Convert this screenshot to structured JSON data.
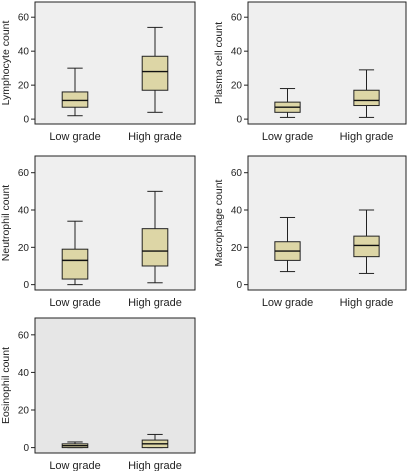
{
  "chart_data": [
    {
      "type": "box",
      "ylabel": "Lymphocyte count",
      "ylim": [
        0,
        65
      ],
      "yticks": [
        "0",
        "20",
        "40",
        "60"
      ],
      "categories": [
        "Low grade",
        "High grade"
      ],
      "boxes": [
        {
          "whisker_low": 2,
          "q1": 7,
          "median": 11,
          "q3": 16,
          "whisker_high": 30
        },
        {
          "whisker_low": 4,
          "q1": 17,
          "median": 28,
          "q3": 37,
          "whisker_high": 54
        }
      ],
      "plot_bg": "#efefef",
      "box_fill": "#ddd6a6"
    },
    {
      "type": "box",
      "ylabel": "Plasma cell count",
      "ylim": [
        0,
        65
      ],
      "yticks": [
        "0",
        "20",
        "40",
        "60"
      ],
      "categories": [
        "Low grade",
        "High grade"
      ],
      "boxes": [
        {
          "whisker_low": 1,
          "q1": 4,
          "median": 7,
          "q3": 10,
          "whisker_high": 18
        },
        {
          "whisker_low": 1,
          "q1": 8,
          "median": 11,
          "q3": 17,
          "whisker_high": 29
        }
      ],
      "plot_bg": "#efefef",
      "box_fill": "#ddd6a6"
    },
    {
      "type": "box",
      "ylabel": "Neutrophil count",
      "ylim": [
        0,
        65
      ],
      "yticks": [
        "0",
        "20",
        "40",
        "60"
      ],
      "categories": [
        "Low grade",
        "High grade"
      ],
      "boxes": [
        {
          "whisker_low": 0,
          "q1": 3,
          "median": 13,
          "q3": 19,
          "whisker_high": 34
        },
        {
          "whisker_low": 1,
          "q1": 10,
          "median": 18,
          "q3": 30,
          "whisker_high": 50
        }
      ],
      "plot_bg": "#efefef",
      "box_fill": "#ddd6a6"
    },
    {
      "type": "box",
      "ylabel": "Macrophage count",
      "ylim": [
        0,
        65
      ],
      "yticks": [
        "0",
        "20",
        "40",
        "60"
      ],
      "categories": [
        "Low grade",
        "High grade"
      ],
      "boxes": [
        {
          "whisker_low": 7,
          "q1": 13,
          "median": 18,
          "q3": 23,
          "whisker_high": 36
        },
        {
          "whisker_low": 6,
          "q1": 15,
          "median": 21,
          "q3": 26,
          "whisker_high": 40
        }
      ],
      "plot_bg": "#efefef",
      "box_fill": "#ddd6a6"
    },
    {
      "type": "box",
      "ylabel": "Eosinophil count",
      "ylim": [
        0,
        65
      ],
      "yticks": [
        "0",
        "20",
        "40",
        "60"
      ],
      "categories": [
        "Low grade",
        "High grade"
      ],
      "boxes": [
        {
          "whisker_low": 0,
          "q1": 0,
          "median": 1,
          "q3": 2,
          "whisker_high": 3
        },
        {
          "whisker_low": 0,
          "q1": 0,
          "median": 2,
          "q3": 4,
          "whisker_high": 7
        }
      ],
      "plot_bg": "#e6e6e6",
      "box_fill": "#ddd6a6"
    }
  ]
}
